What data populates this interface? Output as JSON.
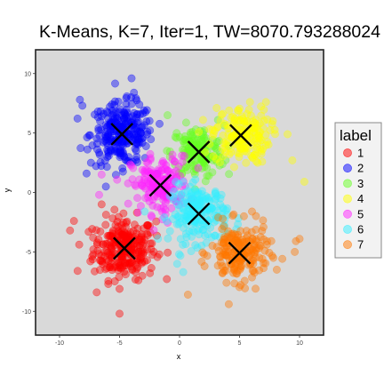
{
  "chart_data": {
    "type": "scatter",
    "title": "K-Means, K=7, Iter=1, TW=8070.793288024",
    "xlabel": "x",
    "ylabel": "y",
    "xlim": [
      -12,
      12
    ],
    "ylim": [
      -12,
      12
    ],
    "xticks": [
      -10,
      -5,
      0,
      5,
      10
    ],
    "yticks": [
      -10,
      -5,
      0,
      5,
      10
    ],
    "grid": false,
    "panel_background": "#d9d9d9",
    "legend": {
      "title": "label",
      "position": "right"
    },
    "series": [
      {
        "name": "1",
        "color": "#ff0000",
        "center": [
          -4.6,
          -4.7
        ],
        "spread": 1.3,
        "count": 260,
        "outliers": [
          [
            -7.2,
            -3.8
          ],
          [
            -8.5,
            -6.6
          ],
          [
            -5.0,
            -10.2
          ],
          [
            -6.9,
            -8.4
          ],
          [
            -8.8,
            -2.4
          ],
          [
            -6.5,
            -1.0
          ]
        ]
      },
      {
        "name": "2",
        "color": "#0000ff",
        "center": [
          -4.8,
          4.9
        ],
        "spread": 1.3,
        "count": 260,
        "outliers": [
          [
            -4.0,
            9.6
          ],
          [
            -8.3,
            7.8
          ],
          [
            -3.8,
            8.4
          ],
          [
            -8.1,
            7.3
          ]
        ]
      },
      {
        "name": "3",
        "color": "#66ff22",
        "center": [
          1.5,
          3.4
        ],
        "spread": 1.1,
        "count": 150,
        "outliers": [
          [
            -1.0,
            6.5
          ],
          [
            3.2,
            6.1
          ]
        ]
      },
      {
        "name": "4",
        "color": "#ffff00",
        "center": [
          5.1,
          4.8
        ],
        "spread": 1.2,
        "count": 170,
        "outliers": [
          [
            10.4,
            0.9
          ],
          [
            7.2,
            7.6
          ],
          [
            9.0,
            4.9
          ],
          [
            9.4,
            2.7
          ]
        ]
      },
      {
        "name": "5",
        "color": "#ff22ff",
        "center": [
          -1.6,
          0.6
        ],
        "spread": 1.2,
        "count": 170,
        "outliers": [
          [
            -6.5,
            1.5
          ],
          [
            -6.7,
            -0.2
          ],
          [
            0.2,
            3.1
          ]
        ]
      },
      {
        "name": "6",
        "color": "#33eeff",
        "center": [
          1.6,
          -1.8
        ],
        "spread": 1.2,
        "count": 200,
        "outliers": [
          [
            -0.2,
            -6.0
          ],
          [
            0.3,
            -6.7
          ]
        ]
      },
      {
        "name": "7",
        "color": "#ff7700",
        "center": [
          5.0,
          -5.1
        ],
        "spread": 1.2,
        "count": 200,
        "outliers": [
          [
            9.6,
            -5.0
          ],
          [
            8.1,
            -6.5
          ],
          [
            0.7,
            -8.6
          ],
          [
            4.1,
            -9.4
          ],
          [
            9.7,
            -4.1
          ],
          [
            10.0,
            -3.9
          ]
        ]
      }
    ],
    "centroids": [
      [
        -4.6,
        -4.7
      ],
      [
        -4.8,
        4.9
      ],
      [
        1.6,
        3.4
      ],
      [
        5.1,
        4.8
      ],
      [
        -1.6,
        0.6
      ],
      [
        1.6,
        -1.8
      ],
      [
        5.0,
        -5.1
      ]
    ],
    "point_alpha": 0.42
  }
}
